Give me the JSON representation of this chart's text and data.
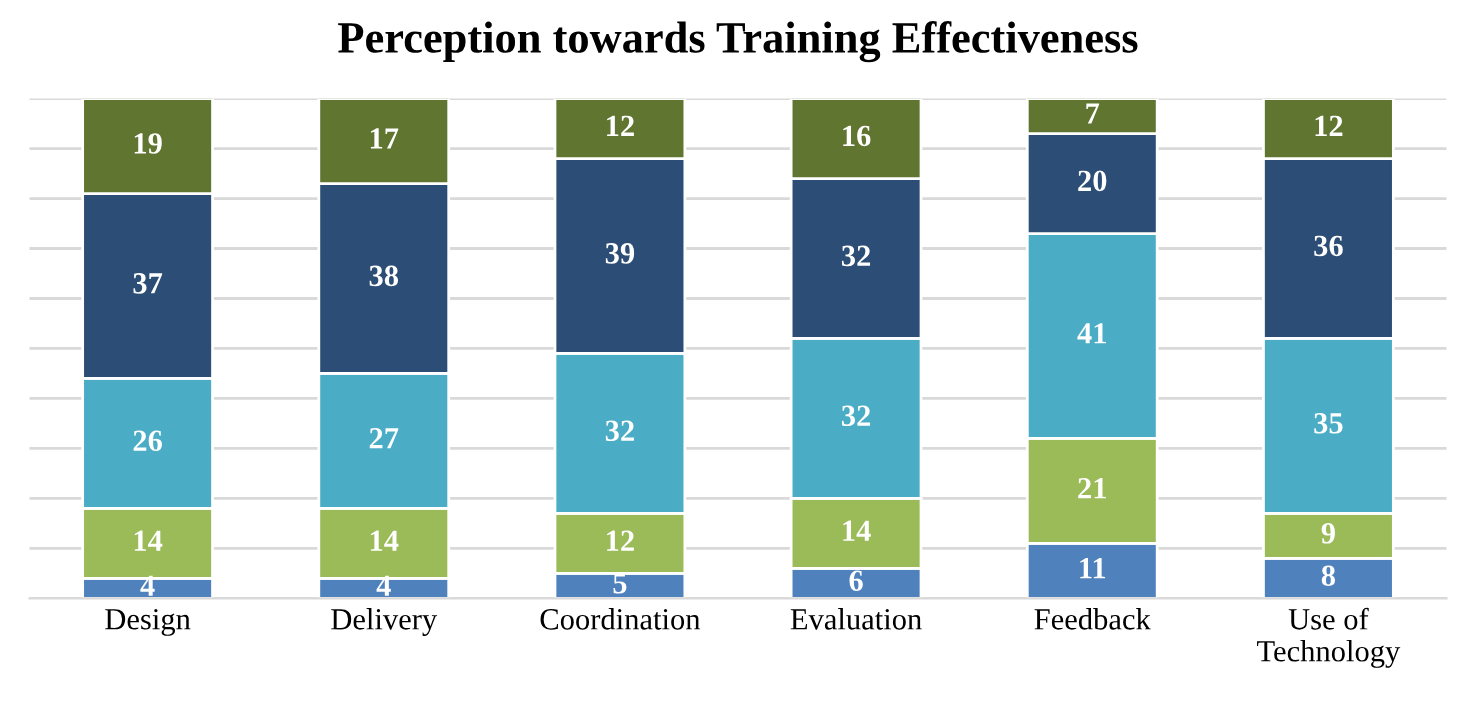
{
  "chart_data": {
    "type": "bar",
    "title": "Perception towards Training Effectiveness",
    "categories": [
      "Design",
      "Delivery",
      "Coordination",
      "Evaluation",
      "Feedback",
      "Use of\nTechnology"
    ],
    "stacked": true,
    "data_labels": true,
    "grid": "y",
    "tick_labels": "x",
    "ylim": [
      0,
      100
    ],
    "yticks": [
      {
        "value": 0,
        "label": null
      },
      {
        "value": 10,
        "label": null
      },
      {
        "value": 20,
        "label": null
      },
      {
        "value": 30,
        "label": null
      },
      {
        "value": 40,
        "label": null
      },
      {
        "value": 50,
        "label": null
      },
      {
        "value": 60,
        "label": null
      },
      {
        "value": 70,
        "label": null
      },
      {
        "value": 80,
        "label": null
      },
      {
        "value": 90,
        "label": null
      },
      {
        "value": 100,
        "label": null
      }
    ],
    "series": [
      {
        "color": "#4f81bd",
        "values": [
          4,
          4,
          5,
          6,
          11,
          8
        ]
      },
      {
        "color": "#9bbb59",
        "values": [
          14,
          14,
          12,
          14,
          21,
          9
        ]
      },
      {
        "color": "#4bacc6",
        "values": [
          26,
          27,
          32,
          32,
          41,
          35
        ]
      },
      {
        "color": "#2c4d75",
        "values": [
          37,
          38,
          39,
          32,
          20,
          36
        ]
      },
      {
        "color": "#5f7530",
        "values": [
          19,
          17,
          12,
          16,
          7,
          12
        ]
      }
    ]
  }
}
